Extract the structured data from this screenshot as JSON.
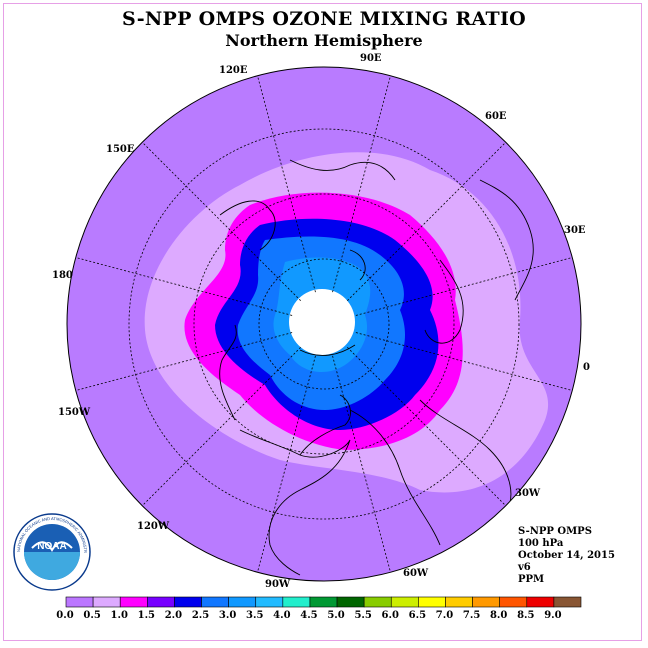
{
  "title": "S-NPP OMPS OZONE MIXING RATIO",
  "subtitle": "Northern Hemisphere",
  "longitude_labels": [
    "90E",
    "60E",
    "30E",
    "0",
    "30W",
    "60W",
    "90W",
    "120W",
    "150W",
    "180",
    "150E",
    "120E"
  ],
  "info": {
    "instrument": "S-NPP OMPS",
    "level": "100 hPa",
    "date": "October 14, 2015",
    "version": "v6",
    "units": "PPM"
  },
  "logo": {
    "text": "NOAA",
    "ring_text": "NATIONAL OCEANIC AND ATMOSPHERIC ADMINISTRATION · U.S. DEPARTMENT OF COMMERCE"
  },
  "colorbar": {
    "labels": [
      "0.0",
      "0.5",
      "1.0",
      "1.5",
      "2.0",
      "2.5",
      "3.0",
      "3.5",
      "4.0",
      "4.5",
      "5.0",
      "5.5",
      "6.0",
      "6.5",
      "7.0",
      "7.5",
      "8.0",
      "8.5",
      "9.0"
    ],
    "colors": [
      "#bb77ff",
      "#ddaaff",
      "#ff00ff",
      "#7700ff",
      "#0000ee",
      "#1177ff",
      "#1199ff",
      "#22bbff",
      "#22eecc",
      "#009933",
      "#006600",
      "#88cc00",
      "#ccee00",
      "#ffff00",
      "#ffcc00",
      "#ff9900",
      "#ff5500",
      "#ee0000",
      "#885533"
    ]
  },
  "map_colors": {
    "outer": "#b97bff",
    "band_light": "#ddaaff",
    "band_magenta": "#ff00ff",
    "band_blue": "#0000ee",
    "band_mid": "#1177ff",
    "band_sky": "#1199ff",
    "pole": "#ffffff"
  }
}
